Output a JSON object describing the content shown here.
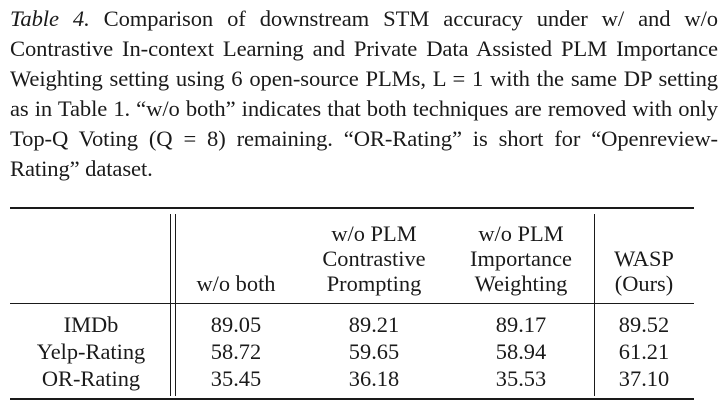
{
  "caption": {
    "label": "Table 4.",
    "lines": [
      "Comparison of downstream STM accuracy under w/ and",
      "w/o Contrastive In-context Learning and Private Data Assisted",
      "PLM Importance Weighting setting using 6 open-source PLMs,",
      "L = 1 with the same DP setting as in Table 1. “w/o both” indicates",
      "that both techniques are removed with only Top-Q Voting (Q = 8)",
      "remaining. “OR-Rating” is short for “Openreview-Rating” dataset."
    ]
  },
  "table": {
    "columns": [
      "",
      "w/o both",
      "w/o PLM Contrastive Prompting",
      "w/o PLM Importance Weighting",
      "WASP (Ours)"
    ],
    "column_lines": [
      [],
      [
        "w/o both"
      ],
      [
        "w/o PLM",
        "Contrastive",
        "Prompting"
      ],
      [
        "w/o PLM",
        "Importance",
        "Weighting"
      ],
      [
        "WASP",
        "(Ours)"
      ]
    ],
    "rows": [
      {
        "dataset": "IMDb",
        "values": [
          "89.05",
          "89.21",
          "89.17",
          "89.52"
        ]
      },
      {
        "dataset": "Yelp-Rating",
        "values": [
          "58.72",
          "59.65",
          "58.94",
          "61.21"
        ]
      },
      {
        "dataset": "OR-Rating",
        "values": [
          "35.45",
          "36.18",
          "35.53",
          "37.10"
        ]
      }
    ]
  }
}
